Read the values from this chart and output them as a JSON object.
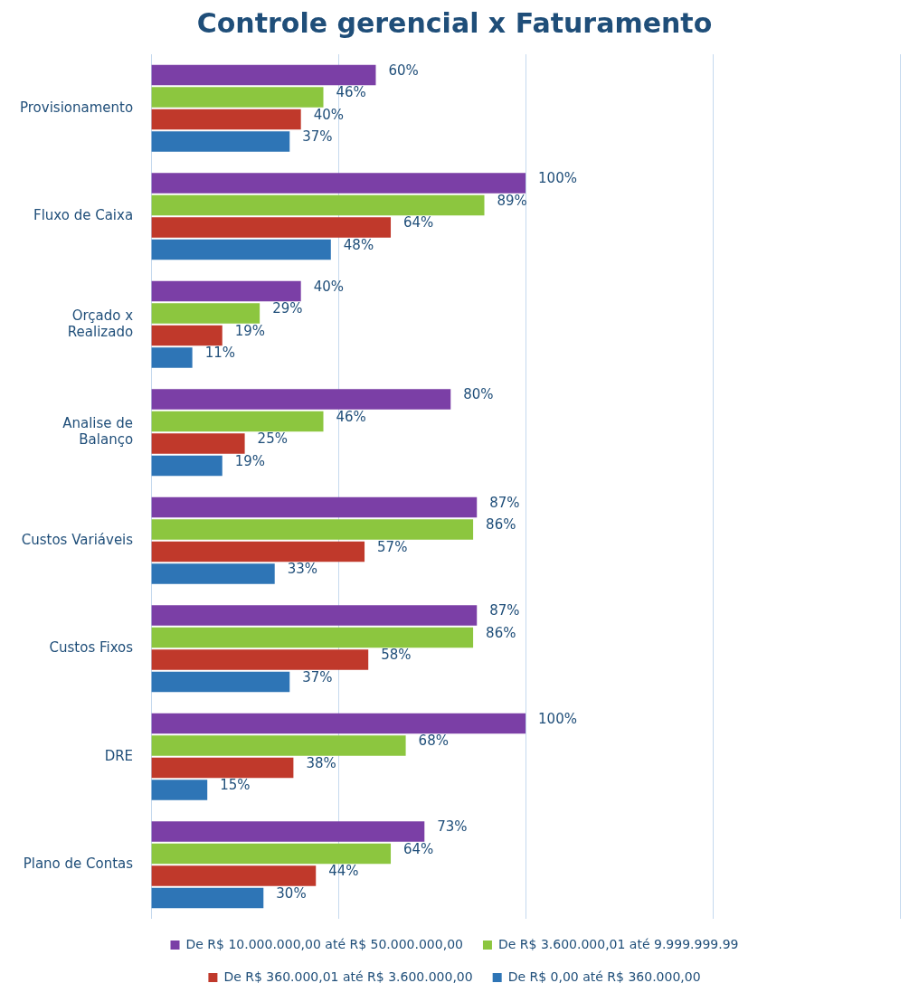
{
  "chart_data": {
    "type": "bar",
    "orientation": "horizontal",
    "title": "Controle gerencial x Faturamento",
    "categories": [
      "Provisionamento",
      "Fluxo de Caixa",
      "Orçado x Realizado",
      "Analise de Balanço",
      "Custos Variáveis",
      "Custos Fixos",
      "DRE",
      "Plano de Contas"
    ],
    "series": [
      {
        "name": "De R$ 10.000.000,00 até R$ 50.000.000,00",
        "color": "#7b3fa6",
        "values": [
          60,
          100,
          40,
          80,
          87,
          87,
          100,
          73
        ],
        "value_labels": [
          "60%",
          "100%",
          "40%",
          "80%",
          "87%",
          "87%",
          "100%",
          "73%"
        ]
      },
      {
        "name": "De R$ 3.600.000,01 até 9.999.999.99",
        "color": "#8cc63f",
        "values": [
          46,
          89,
          29,
          46,
          86,
          86,
          68,
          64
        ],
        "value_labels": [
          "46%",
          "89%",
          "29%",
          "46%",
          "86%",
          "86%",
          "68%",
          "64%"
        ]
      },
      {
        "name": "De R$ 360.000,01 até R$ 3.600.000,00",
        "color": "#c0392b",
        "values": [
          40,
          64,
          19,
          25,
          57,
          58,
          38,
          44
        ],
        "value_labels": [
          "40%",
          "64%",
          "19%",
          "25%",
          "57%",
          "58%",
          "38%",
          "44%"
        ]
      },
      {
        "name": "De R$ 0,00 até R$ 360.000,00",
        "color": "#2e75b6",
        "values": [
          37,
          48,
          11,
          19,
          33,
          37,
          15,
          30
        ],
        "value_labels": [
          "37%",
          "48%",
          "11%",
          "19%",
          "33%",
          "37%",
          "15%",
          "30%"
        ]
      }
    ],
    "xlim": [
      0,
      200
    ],
    "xticks": [
      {
        "value": 0,
        "label": null
      },
      {
        "value": 50,
        "label": null
      },
      {
        "value": 100,
        "label": null
      },
      {
        "value": 150,
        "label": null
      },
      {
        "value": 200,
        "label": null
      }
    ],
    "tick_labels": "y",
    "grid": "x",
    "legend": "bottom"
  }
}
